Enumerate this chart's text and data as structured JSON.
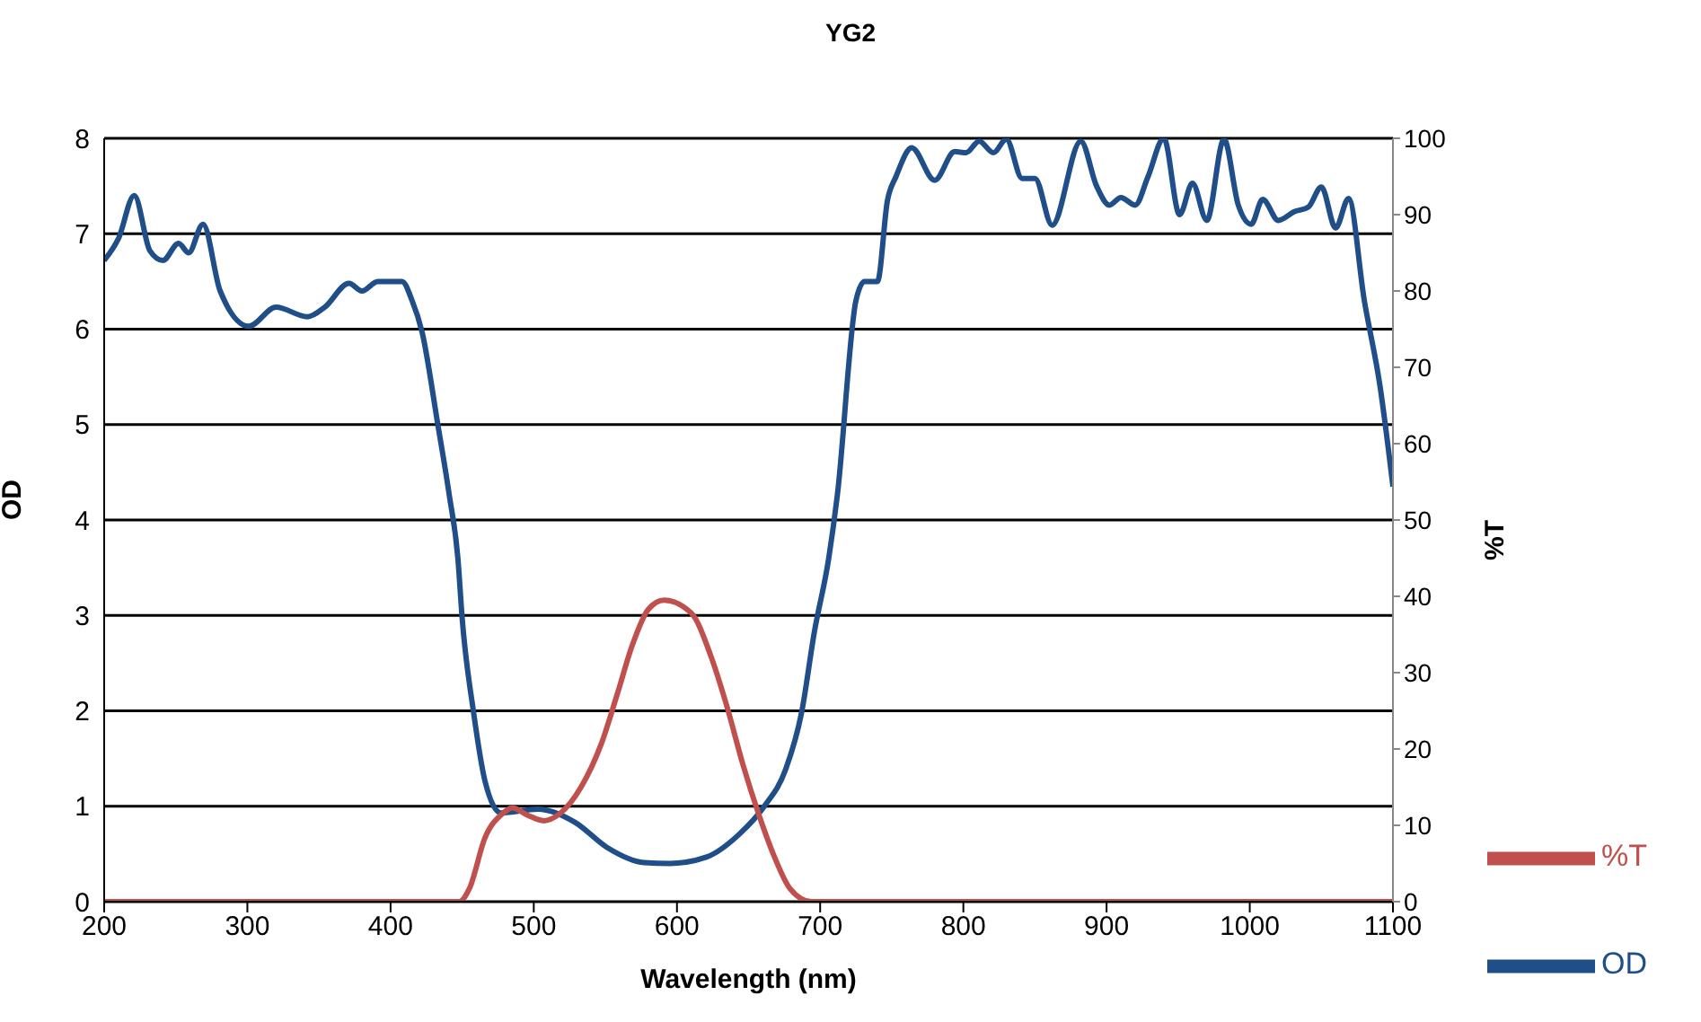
{
  "chart_data": {
    "type": "line",
    "title": "YG2",
    "xlabel": "Wavelength (nm)",
    "ylabel": "OD",
    "y2label": "%T",
    "xlim": [
      200,
      1100
    ],
    "xticks": [
      200,
      300,
      400,
      500,
      600,
      700,
      800,
      900,
      1000,
      1100
    ],
    "ylim": [
      0,
      8
    ],
    "yticks": [
      0,
      1,
      2,
      3,
      4,
      5,
      6,
      7,
      8
    ],
    "y2lim": [
      0,
      100
    ],
    "y2ticks": [
      0,
      10,
      20,
      30,
      40,
      50,
      60,
      70,
      80,
      90,
      100
    ],
    "grid": "y",
    "legend": "bottom right",
    "marker": "none",
    "line_style": "solid",
    "series": [
      {
        "name": "OD",
        "color": "#1f4e89",
        "x": [
          200,
          210,
          221,
          232,
          241,
          252,
          259,
          269,
          281,
          301,
          320,
          342,
          354,
          371,
          380,
          391,
          408,
          415,
          422,
          433,
          441,
          447,
          450,
          458,
          466,
          477,
          503,
          529,
          551,
          577,
          595,
          621,
          643,
          661,
          676,
          687,
          696,
          706,
          712,
          725,
          731,
          740,
          747,
          753,
          764,
          780,
          794,
          802,
          811,
          821,
          830,
          841,
          850,
          862,
          882,
          893,
          902,
          910,
          920,
          929,
          940,
          951,
          960,
          970,
          982,
          992,
          1001,
          1009,
          1020,
          1031,
          1041,
          1050,
          1060,
          1069,
          1080,
          1091,
          1100
        ],
        "values": [
          6.72,
          6.95,
          7.4,
          6.82,
          6.72,
          6.9,
          6.8,
          7.1,
          6.4,
          6.03,
          6.23,
          6.13,
          6.23,
          6.48,
          6.4,
          6.5,
          6.5,
          6.3,
          5.97,
          5.0,
          4.26,
          3.6,
          2.97,
          1.98,
          1.26,
          0.93,
          0.97,
          0.83,
          0.57,
          0.41,
          0.4,
          0.47,
          0.7,
          1.0,
          1.39,
          1.98,
          2.83,
          3.6,
          4.26,
          6.3,
          6.5,
          6.5,
          7.35,
          7.6,
          7.9,
          7.56,
          7.86,
          7.85,
          7.97,
          7.85,
          7.99,
          7.58,
          7.58,
          7.09,
          7.97,
          7.5,
          7.3,
          7.38,
          7.3,
          7.6,
          8.0,
          7.2,
          7.53,
          7.14,
          7.99,
          7.3,
          7.1,
          7.36,
          7.14,
          7.23,
          7.28,
          7.49,
          7.06,
          7.37,
          6.3,
          5.4,
          4.35
        ]
      },
      {
        "name": "%T",
        "color": "#c0504d",
        "axis": "y2",
        "x": [
          200,
          448,
          455,
          466,
          478,
          485,
          496,
          507,
          518,
          533,
          547,
          558,
          569,
          580,
          591,
          610,
          624,
          635,
          646,
          657,
          668,
          679,
          694,
          1100
        ],
        "values": [
          0,
          0,
          1.7,
          8.4,
          11.5,
          12.3,
          11.3,
          10.6,
          11.5,
          15,
          20.6,
          27,
          33.7,
          38.3,
          39.5,
          37.8,
          32,
          25.5,
          18,
          11.5,
          5.9,
          1.7,
          0,
          0
        ]
      }
    ]
  }
}
